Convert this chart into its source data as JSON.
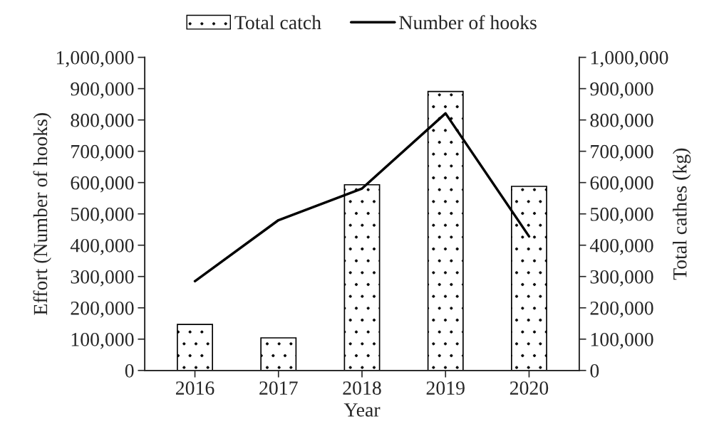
{
  "chart_data": {
    "type": "bar",
    "xlabel": "Year",
    "ylabel": "Effort (Number of hooks)",
    "y2label": "Total cathes (kg)",
    "categories": [
      "2016",
      "2017",
      "2018",
      "2019",
      "2020"
    ],
    "series": [
      {
        "name": "Total catch",
        "axis": "y2",
        "color": "#ffffff",
        "values": [
          147000,
          104000,
          593000,
          891000,
          588000
        ]
      },
      {
        "name": "Number of hooks",
        "type": "line",
        "axis": "y",
        "color": "#000000",
        "values": [
          285000,
          480000,
          581000,
          821000,
          428000
        ]
      }
    ],
    "ylim": [
      0,
      1000000
    ],
    "yticks": [
      {
        "value": 0,
        "label": "0"
      },
      {
        "value": 100000,
        "label": "100,000"
      },
      {
        "value": 200000,
        "label": "200,000"
      },
      {
        "value": 300000,
        "label": "300,000"
      },
      {
        "value": 400000,
        "label": "400,000"
      },
      {
        "value": 500000,
        "label": "500,000"
      },
      {
        "value": 600000,
        "label": "600,000"
      },
      {
        "value": 700000,
        "label": "700,000"
      },
      {
        "value": 800000,
        "label": "800,000"
      },
      {
        "value": 900000,
        "label": "900,000"
      },
      {
        "value": 1000000,
        "label": "1,000,000"
      }
    ],
    "y2lim": [
      0,
      1000000
    ],
    "y2ticks": [
      {
        "value": 0,
        "label": "0"
      },
      {
        "value": 100000,
        "label": "100,000"
      },
      {
        "value": 200000,
        "label": "200,000"
      },
      {
        "value": 300000,
        "label": "300,000"
      },
      {
        "value": 400000,
        "label": "400,000"
      },
      {
        "value": 500000,
        "label": "500,000"
      },
      {
        "value": 600000,
        "label": "600,000"
      },
      {
        "value": 700000,
        "label": "700,000"
      },
      {
        "value": 800000,
        "label": "800,000"
      },
      {
        "value": 900000,
        "label": "900,000"
      },
      {
        "value": 1000000,
        "label": "1,000,000"
      }
    ],
    "legend": "top",
    "grid": false
  }
}
